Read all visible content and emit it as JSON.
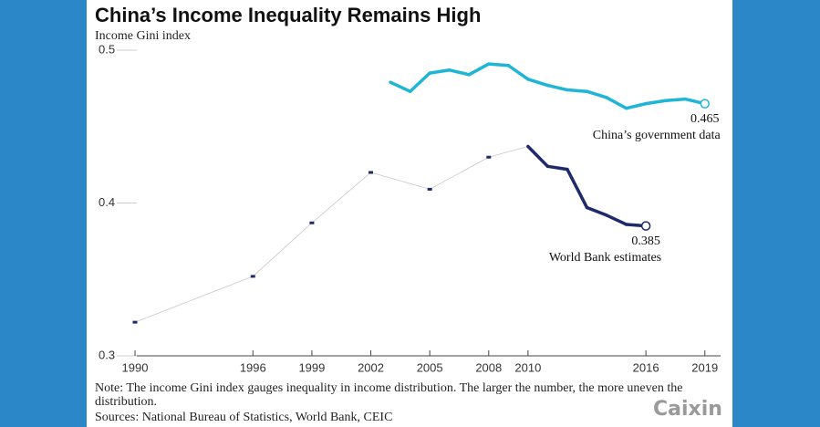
{
  "chart_data": {
    "type": "line",
    "title": "China’s Income Inequality Remains High",
    "subtitle": "Income Gini index",
    "note": "Note: The income Gini index gauges inequality in income distribution. The larger the number, the more uneven the distribution.",
    "sources": "Sources: National Bureau of Statistics, World Bank, CEIC",
    "brand": "Caixin",
    "xlim": [
      1989.6,
      2019.8
    ],
    "xticks": [
      1990,
      1996,
      1999,
      2002,
      2005,
      2008,
      2010,
      2016,
      2019
    ],
    "ylim": [
      0.3,
      0.5
    ],
    "yticks": [
      0.3,
      0.4,
      0.5
    ],
    "series": [
      {
        "name": "China’s government data",
        "color": "#1fb5d6",
        "x": [
          2003,
          2004,
          2005,
          2006,
          2007,
          2008,
          2009,
          2010,
          2011,
          2012,
          2013,
          2014,
          2015,
          2016,
          2017,
          2018,
          2019
        ],
        "values": [
          0.479,
          0.473,
          0.485,
          0.487,
          0.484,
          0.491,
          0.49,
          0.481,
          0.477,
          0.474,
          0.473,
          0.469,
          0.462,
          0.465,
          0.467,
          0.468,
          0.465
        ]
      },
      {
        "name": "World Bank estimates",
        "color": "#1f2a6b",
        "x": [
          1990,
          1996,
          1999,
          2002,
          2005,
          2008,
          2010,
          2011,
          2012,
          2013,
          2014,
          2015,
          2016
        ],
        "values": [
          0.322,
          0.352,
          0.387,
          0.42,
          0.409,
          0.43,
          0.437,
          0.424,
          0.422,
          0.397,
          0.392,
          0.386,
          0.385
        ]
      }
    ]
  }
}
